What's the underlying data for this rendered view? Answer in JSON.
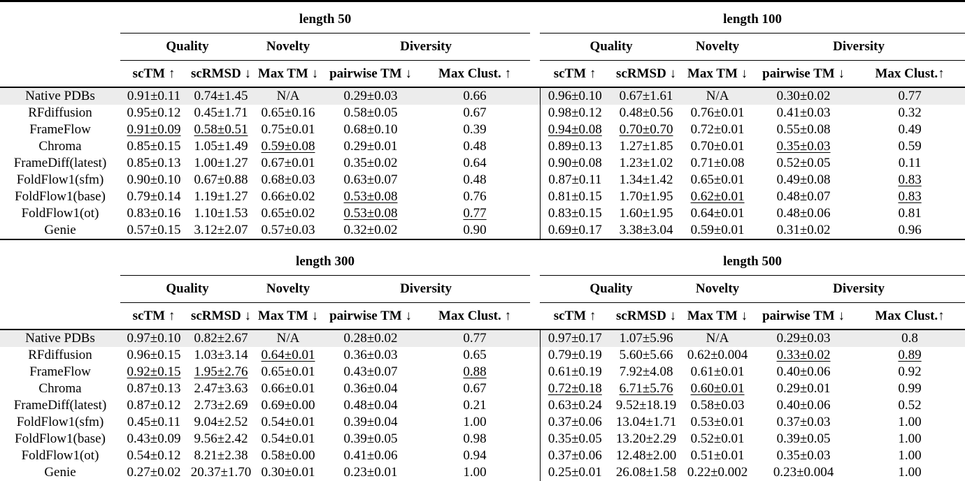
{
  "page": {
    "background_color": "#ffffff",
    "text_color": "#000000",
    "highlight_row_color": "#ececec"
  },
  "tables": [
    {
      "left": {
        "title": "length 50",
        "groups": [
          "Quality",
          "Novelty",
          "Diversity"
        ],
        "columns": [
          "scTM ↑",
          "scRMSD ↓",
          "Max TM ↓",
          "pairwise TM ↓",
          "Max Clust. ↑"
        ]
      },
      "right": {
        "title": "length 100",
        "groups": [
          "Quality",
          "Novelty",
          "Diversity"
        ],
        "columns": [
          "scTM ↑",
          "scRMSD ↓",
          "Max TM ↓",
          "pairwise TM ↓",
          "Max Clust.↑"
        ]
      },
      "rows": [
        {
          "label": "Native PDBs",
          "highlight": true,
          "left": [
            [
              "0.91±0.11",
              ""
            ],
            [
              "0.74±1.45",
              ""
            ],
            [
              "N/A",
              ""
            ],
            [
              "0.29±0.03",
              ""
            ],
            [
              "0.66",
              ""
            ]
          ],
          "right": [
            [
              "0.96±0.10",
              ""
            ],
            [
              "0.67±1.61",
              ""
            ],
            [
              "N/A",
              ""
            ],
            [
              "0.30±0.02",
              ""
            ],
            [
              "0.77",
              ""
            ]
          ]
        },
        {
          "label": "RFdiffusion",
          "highlight": false,
          "left": [
            [
              "0.95±0.12",
              "b"
            ],
            [
              "0.45±1.71",
              "b"
            ],
            [
              "0.65±0.16",
              ""
            ],
            [
              "0.58±0.05",
              ""
            ],
            [
              "0.67",
              ""
            ]
          ],
          "right": [
            [
              "0.98±0.12",
              "b"
            ],
            [
              "0.48±0.56",
              "b"
            ],
            [
              "0.76±0.01",
              ""
            ],
            [
              "0.41±0.03",
              ""
            ],
            [
              "0.32",
              ""
            ]
          ]
        },
        {
          "label": "FrameFlow",
          "highlight": false,
          "left": [
            [
              "0.91±0.09",
              "u"
            ],
            [
              "0.58±0.51",
              "u"
            ],
            [
              "0.75±0.01",
              ""
            ],
            [
              "0.68±0.10",
              ""
            ],
            [
              "0.39",
              ""
            ]
          ],
          "right": [
            [
              "0.94±0.08",
              "u"
            ],
            [
              "0.70±0.70",
              "u"
            ],
            [
              "0.72±0.01",
              ""
            ],
            [
              "0.55±0.08",
              ""
            ],
            [
              "0.49",
              ""
            ]
          ]
        },
        {
          "label": "Chroma",
          "highlight": false,
          "left": [
            [
              "0.85±0.15",
              ""
            ],
            [
              "1.05±1.49",
              ""
            ],
            [
              "0.59±0.08",
              "u"
            ],
            [
              "0.29±0.01",
              ""
            ],
            [
              "0.48",
              ""
            ]
          ],
          "right": [
            [
              "0.89±0.13",
              ""
            ],
            [
              "1.27±1.85",
              ""
            ],
            [
              "0.70±0.01",
              ""
            ],
            [
              "0.35±0.03",
              "u"
            ],
            [
              "0.59",
              ""
            ]
          ]
        },
        {
          "label": "FrameDiff(latest)",
          "highlight": false,
          "left": [
            [
              "0.85±0.13",
              ""
            ],
            [
              "1.00±1.27",
              ""
            ],
            [
              "0.67±0.01",
              ""
            ],
            [
              "0.35±0.02",
              ""
            ],
            [
              "0.64",
              ""
            ]
          ],
          "right": [
            [
              "0.90±0.08",
              ""
            ],
            [
              "1.23±1.02",
              ""
            ],
            [
              "0.71±0.08",
              ""
            ],
            [
              "0.52±0.05",
              ""
            ],
            [
              "0.11",
              ""
            ]
          ]
        },
        {
          "label": "FoldFlow1(sfm)",
          "highlight": false,
          "left": [
            [
              "0.90±0.10",
              ""
            ],
            [
              "0.67±0.88",
              ""
            ],
            [
              "0.68±0.03",
              ""
            ],
            [
              "0.63±0.07",
              ""
            ],
            [
              "0.48",
              ""
            ]
          ],
          "right": [
            [
              "0.87±0.11",
              ""
            ],
            [
              "1.34±1.42",
              ""
            ],
            [
              "0.65±0.01",
              ""
            ],
            [
              "0.49±0.08",
              ""
            ],
            [
              "0.83",
              "u"
            ]
          ]
        },
        {
          "label": "FoldFlow1(base)",
          "highlight": false,
          "left": [
            [
              "0.79±0.14",
              ""
            ],
            [
              "1.19±1.27",
              ""
            ],
            [
              "0.66±0.02",
              ""
            ],
            [
              "0.53±0.08",
              "u"
            ],
            [
              "0.76",
              ""
            ]
          ],
          "right": [
            [
              "0.81±0.15",
              ""
            ],
            [
              "1.70±1.95",
              ""
            ],
            [
              "0.62±0.01",
              "u"
            ],
            [
              "0.48±0.07",
              ""
            ],
            [
              "0.83",
              "u"
            ]
          ]
        },
        {
          "label": "FoldFlow1(ot)",
          "highlight": false,
          "left": [
            [
              "0.83±0.16",
              ""
            ],
            [
              "1.10±1.53",
              ""
            ],
            [
              "0.65±0.02",
              ""
            ],
            [
              "0.53±0.08",
              "u"
            ],
            [
              "0.77",
              "u"
            ]
          ],
          "right": [
            [
              "0.83±0.15",
              ""
            ],
            [
              "1.60±1.95",
              ""
            ],
            [
              "0.64±0.01",
              ""
            ],
            [
              "0.48±0.06",
              ""
            ],
            [
              "0.81",
              ""
            ]
          ]
        },
        {
          "label": "Genie",
          "highlight": false,
          "left": [
            [
              "0.57±0.15",
              ""
            ],
            [
              "3.12±2.07",
              ""
            ],
            [
              "0.57±0.03",
              "b"
            ],
            [
              "0.32±0.02",
              "b"
            ],
            [
              "0.90",
              "b"
            ]
          ],
          "right": [
            [
              "0.69±0.17",
              ""
            ],
            [
              "3.38±3.04",
              ""
            ],
            [
              "0.59±0.01",
              "b"
            ],
            [
              "0.31±0.02",
              "b"
            ],
            [
              "0.96",
              "b"
            ]
          ]
        }
      ]
    },
    {
      "left": {
        "title": "length 300",
        "groups": [
          "Quality",
          "Novelty",
          "Diversity"
        ],
        "columns": [
          "scTM ↑",
          "scRMSD ↓",
          "Max TM ↓",
          "pairwise TM ↓",
          "Max Clust. ↑"
        ]
      },
      "right": {
        "title": "length 500",
        "groups": [
          "Quality",
          "Novelty",
          "Diversity"
        ],
        "columns": [
          "scTM ↑",
          "scRMSD ↓",
          "Max TM ↓",
          "pairwise TM ↓",
          "Max Clust.↑"
        ]
      },
      "rows": [
        {
          "label": "Native PDBs",
          "highlight": true,
          "left": [
            [
              "0.97±0.10",
              ""
            ],
            [
              "0.82±2.67",
              ""
            ],
            [
              "N/A",
              ""
            ],
            [
              "0.28±0.02",
              ""
            ],
            [
              "0.77",
              ""
            ]
          ],
          "right": [
            [
              "0.97±0.17",
              ""
            ],
            [
              "1.07±5.96",
              ""
            ],
            [
              "N/A",
              ""
            ],
            [
              "0.29±0.03",
              ""
            ],
            [
              "0.8",
              ""
            ]
          ]
        },
        {
          "label": "RFdiffusion",
          "highlight": false,
          "left": [
            [
              "0.96±0.15",
              "b"
            ],
            [
              "1.03±3.14",
              "b"
            ],
            [
              "0.64±0.01",
              "u"
            ],
            [
              "0.36±0.03",
              "b"
            ],
            [
              "0.65",
              ""
            ]
          ],
          "right": [
            [
              "0.79±0.19",
              "b"
            ],
            [
              "5.60±5.66",
              "b"
            ],
            [
              "0.62±0.004",
              ""
            ],
            [
              "0.33±0.02",
              "u"
            ],
            [
              "0.89",
              "u"
            ]
          ]
        },
        {
          "label": "FrameFlow",
          "highlight": false,
          "left": [
            [
              "0.92±0.15",
              "u"
            ],
            [
              "1.95±2.76",
              "u"
            ],
            [
              "0.65±0.01",
              ""
            ],
            [
              "0.43±0.07",
              ""
            ],
            [
              "0.88",
              "u"
            ]
          ],
          "right": [
            [
              "0.61±0.19",
              ""
            ],
            [
              "7.92±4.08",
              ""
            ],
            [
              "0.61±0.01",
              ""
            ],
            [
              "0.40±0.06",
              ""
            ],
            [
              "0.92",
              ""
            ]
          ]
        },
        {
          "label": "Chroma",
          "highlight": false,
          "left": [
            [
              "0.87±0.13",
              ""
            ],
            [
              "2.47±3.63",
              ""
            ],
            [
              "0.66±0.01",
              ""
            ],
            [
              "0.36±0.04",
              "b"
            ],
            [
              "0.67",
              ""
            ]
          ],
          "right": [
            [
              "0.72±0.18",
              "u"
            ],
            [
              "6.71±5.76",
              "u"
            ],
            [
              "0.60±0.01",
              "u"
            ],
            [
              "0.29±0.01",
              "b"
            ],
            [
              "0.99",
              "b"
            ]
          ]
        },
        {
          "label": "FrameDiff(latest)",
          "highlight": false,
          "left": [
            [
              "0.87±0.12",
              ""
            ],
            [
              "2.73±2.69",
              ""
            ],
            [
              "0.69±0.00",
              ""
            ],
            [
              "0.48±0.04",
              ""
            ],
            [
              "0.21",
              ""
            ]
          ],
          "right": [
            [
              "0.63±0.24",
              ""
            ],
            [
              "9.52±18.19",
              ""
            ],
            [
              "0.58±0.03",
              "b"
            ],
            [
              "0.40±0.06",
              ""
            ],
            [
              "0.52",
              ""
            ]
          ]
        },
        {
          "label": "FoldFlow1(sfm)",
          "highlight": false,
          "left": [
            [
              "0.45±0.11",
              ""
            ],
            [
              "9.04±2.52",
              ""
            ],
            [
              "0.54±0.01",
              ""
            ],
            [
              "0.39±0.04",
              ""
            ],
            [
              "1.00",
              ""
            ]
          ],
          "right": [
            [
              "0.37±0.06",
              ""
            ],
            [
              "13.04±1.71",
              ""
            ],
            [
              "0.53±0.01",
              ""
            ],
            [
              "0.37±0.03",
              ""
            ],
            [
              "1.00",
              ""
            ]
          ]
        },
        {
          "label": "FoldFlow1(base)",
          "highlight": false,
          "left": [
            [
              "0.43±0.09",
              ""
            ],
            [
              "9.56±2.42",
              ""
            ],
            [
              "0.54±0.01",
              ""
            ],
            [
              "0.39±0.05",
              ""
            ],
            [
              "0.98",
              ""
            ]
          ],
          "right": [
            [
              "0.35±0.05",
              ""
            ],
            [
              "13.20±2.29",
              ""
            ],
            [
              "0.52±0.01",
              ""
            ],
            [
              "0.39±0.05",
              ""
            ],
            [
              "1.00",
              ""
            ]
          ]
        },
        {
          "label": "FoldFlow1(ot)",
          "highlight": false,
          "left": [
            [
              "0.54±0.12",
              ""
            ],
            [
              "8.21±2.38",
              ""
            ],
            [
              "0.58±0.00",
              "b"
            ],
            [
              "0.41±0.06",
              ""
            ],
            [
              "0.94",
              "b"
            ]
          ],
          "right": [
            [
              "0.37±0.06",
              ""
            ],
            [
              "12.48±2.00",
              ""
            ],
            [
              "0.51±0.01",
              ""
            ],
            [
              "0.35±0.03",
              ""
            ],
            [
              "1.00",
              ""
            ]
          ]
        },
        {
          "label": "Genie",
          "highlight": false,
          "left": [
            [
              "0.27±0.02",
              ""
            ],
            [
              "20.37±1.70",
              ""
            ],
            [
              "0.30±0.01",
              ""
            ],
            [
              "0.23±0.01",
              ""
            ],
            [
              "1.00",
              ""
            ]
          ],
          "right": [
            [
              "0.25±0.01",
              ""
            ],
            [
              "26.08±1.58",
              ""
            ],
            [
              "0.22±0.002",
              ""
            ],
            [
              "0.23±0.004",
              ""
            ],
            [
              "1.00",
              ""
            ]
          ]
        }
      ]
    }
  ]
}
